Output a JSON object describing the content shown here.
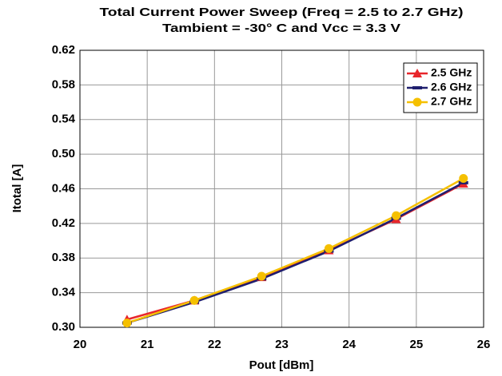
{
  "chart_data": {
    "type": "line",
    "title": "Total Current Power Sweep (Freq = 2.5 to 2.7 GHz)",
    "subtitle": "Tambient = -30° C and Vcc = 3.3 V",
    "x_label": "Pout [dBm]",
    "y_label": "Itotal [A]",
    "x": [
      20.7,
      21.7,
      22.7,
      23.7,
      24.7,
      25.7
    ],
    "series": [
      {
        "name": "2.5 GHz",
        "color": "#e8262b",
        "marker": "triangle",
        "values": [
          0.309,
          0.331,
          0.358,
          0.389,
          0.425,
          0.466
        ]
      },
      {
        "name": "2.6 GHz",
        "color": "#1f1f6e",
        "marker": "dash",
        "values": [
          0.305,
          0.329,
          0.356,
          0.388,
          0.426,
          0.467
        ]
      },
      {
        "name": "2.7 GHz",
        "color": "#f5c000",
        "marker": "circle",
        "values": [
          0.305,
          0.331,
          0.359,
          0.391,
          0.429,
          0.472
        ]
      }
    ],
    "xlim": [
      20,
      26
    ],
    "xticks": [
      20,
      21,
      22,
      23,
      24,
      25,
      26
    ],
    "ylim": [
      0.3,
      0.62
    ],
    "yticks": [
      {
        "value": 0.3,
        "label": "0.30"
      },
      0.34,
      0.38,
      0.42,
      0.46,
      {
        "value": 0.5,
        "label": "0.50"
      },
      0.54,
      0.58,
      0.62
    ],
    "grid": true,
    "legend": "upper right"
  }
}
